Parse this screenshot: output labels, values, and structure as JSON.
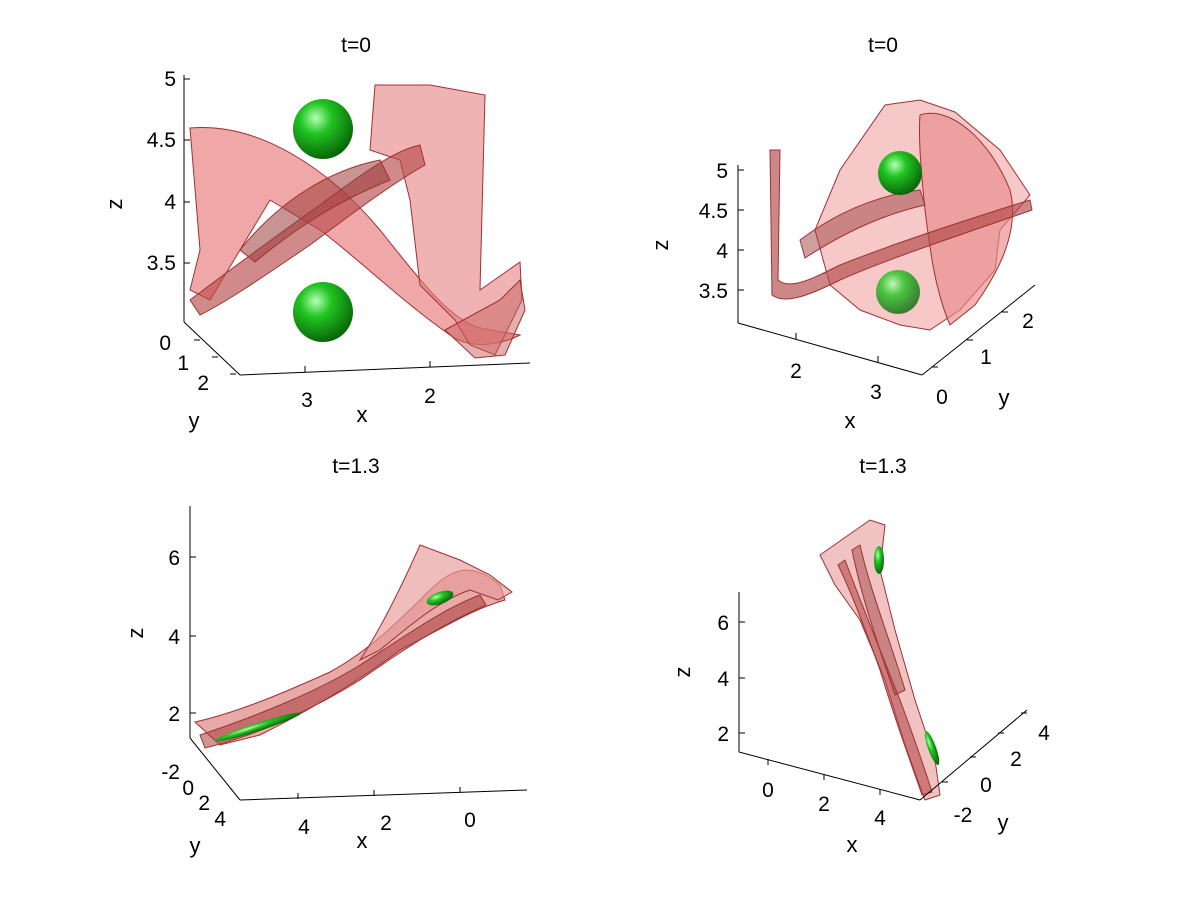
{
  "chart_data": [
    {
      "type": "3d-surface",
      "title": "t=0",
      "xlabel": "x",
      "ylabel": "y",
      "zlabel": "z",
      "x_ticks": [
        "3",
        "2"
      ],
      "y_ticks": [
        "0",
        "1",
        "2"
      ],
      "z_ticks": [
        "5",
        "4.5",
        "4",
        "3.5"
      ],
      "zlim": [
        3.1,
        5
      ],
      "surface_color": "#e88888",
      "sphere_color": "#14b814",
      "spheres": [
        {
          "z": 4.6
        },
        {
          "z": 3.4
        }
      ]
    },
    {
      "type": "3d-surface",
      "title": "t=0",
      "xlabel": "x",
      "ylabel": "y",
      "zlabel": "z",
      "x_ticks": [
        "2",
        "3"
      ],
      "y_ticks": [
        "0",
        "1",
        "2"
      ],
      "z_ticks": [
        "5",
        "4.5",
        "4",
        "3.5"
      ],
      "zlim": [
        3.1,
        5
      ],
      "surface_color": "#e88888",
      "sphere_color": "#14b814",
      "spheres": [
        {
          "z": 4.9
        },
        {
          "z": 3.4
        }
      ]
    },
    {
      "type": "3d-surface",
      "title": "t=1.3",
      "xlabel": "x",
      "ylabel": "y",
      "zlabel": "z",
      "x_ticks": [
        "4",
        "2",
        "0"
      ],
      "y_ticks": [
        "-2",
        "0",
        "2",
        "4"
      ],
      "z_ticks": [
        "6",
        "4",
        "2"
      ],
      "surface_color": "#e88888",
      "sphere_color": "#14b814"
    },
    {
      "type": "3d-surface",
      "title": "t=1.3",
      "xlabel": "x",
      "ylabel": "y",
      "zlabel": "z",
      "x_ticks": [
        "0",
        "2",
        "4"
      ],
      "y_ticks": [
        "-2",
        "0",
        "2",
        "4"
      ],
      "z_ticks": [
        "6",
        "4",
        "2"
      ],
      "surface_color": "#e88888",
      "sphere_color": "#14b814"
    }
  ]
}
